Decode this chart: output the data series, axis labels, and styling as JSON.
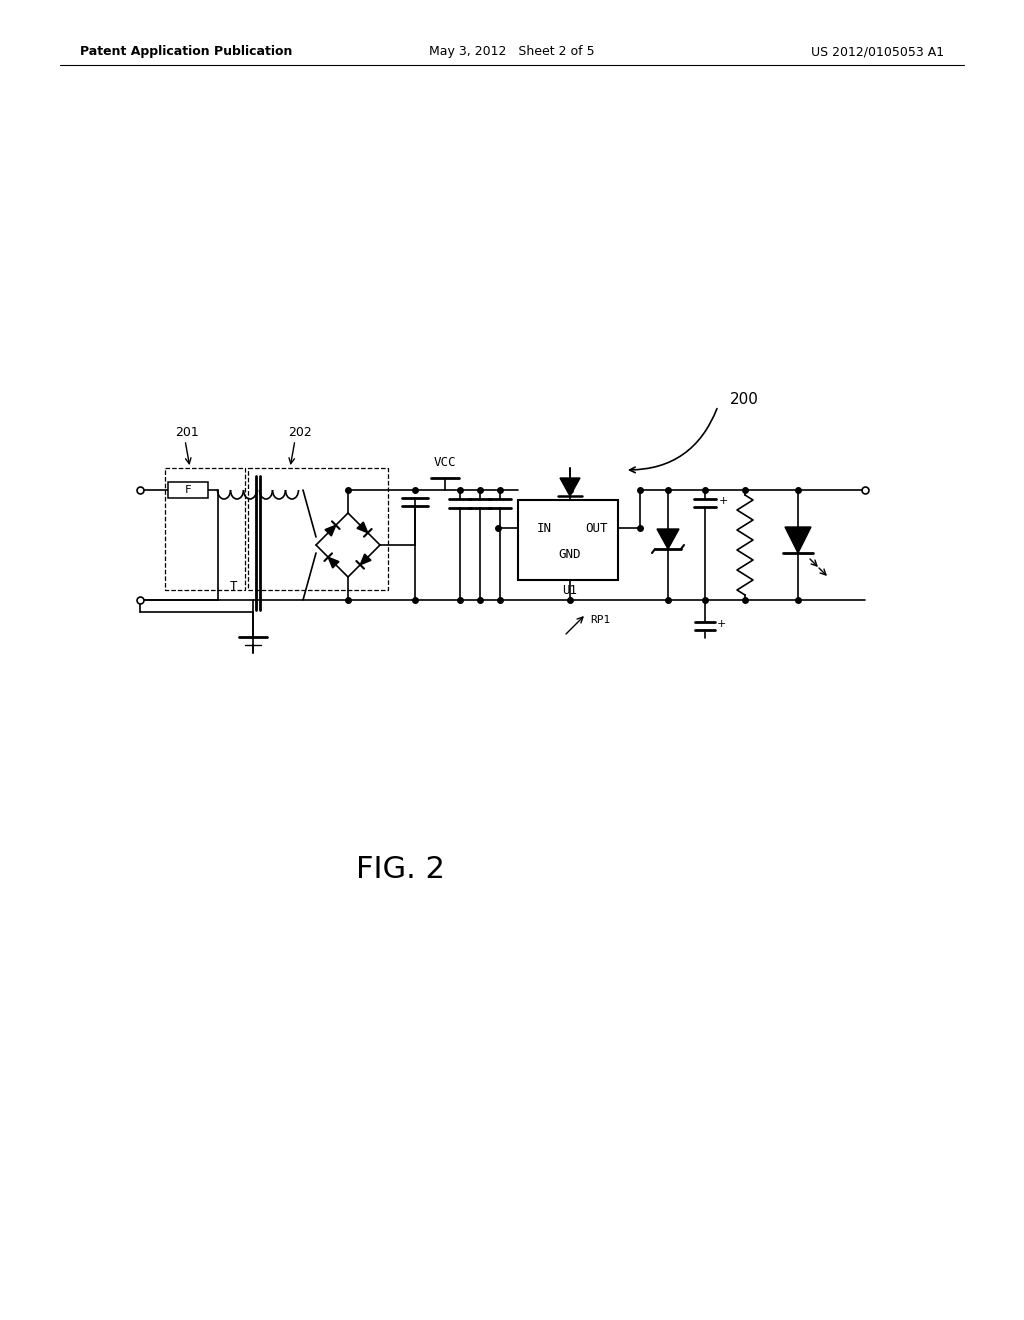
{
  "header_left": "Patent Application Publication",
  "header_mid": "May 3, 2012   Sheet 2 of 5",
  "header_right": "US 2012/0105053 A1",
  "fig_label": "FIG. 2",
  "label_200": "200",
  "label_201": "201",
  "label_202": "202",
  "label_VCC": "VCC",
  "label_U1": "U1",
  "label_IN": "IN",
  "label_OUT": "OUT",
  "label_GND": "GND",
  "label_F": "F",
  "label_T": "T",
  "label_RP1": "RP1",
  "background": "#ffffff"
}
